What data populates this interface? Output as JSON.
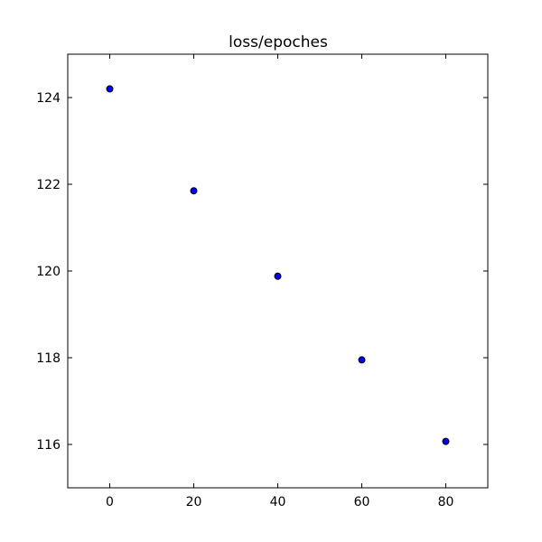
{
  "chart_data": {
    "type": "scatter",
    "title": "loss/epoches",
    "xlabel": "",
    "ylabel": "",
    "xlim": [
      -10,
      90
    ],
    "ylim": [
      115,
      125
    ],
    "xticks": [
      0,
      20,
      40,
      60,
      80
    ],
    "yticks": [
      116,
      118,
      120,
      122,
      124
    ],
    "grid": false,
    "series": [
      {
        "x": [
          0,
          20,
          40,
          60,
          80
        ],
        "y": [
          124.2,
          121.85,
          119.88,
          117.95,
          116.07
        ],
        "color": "#0000ff"
      }
    ]
  }
}
